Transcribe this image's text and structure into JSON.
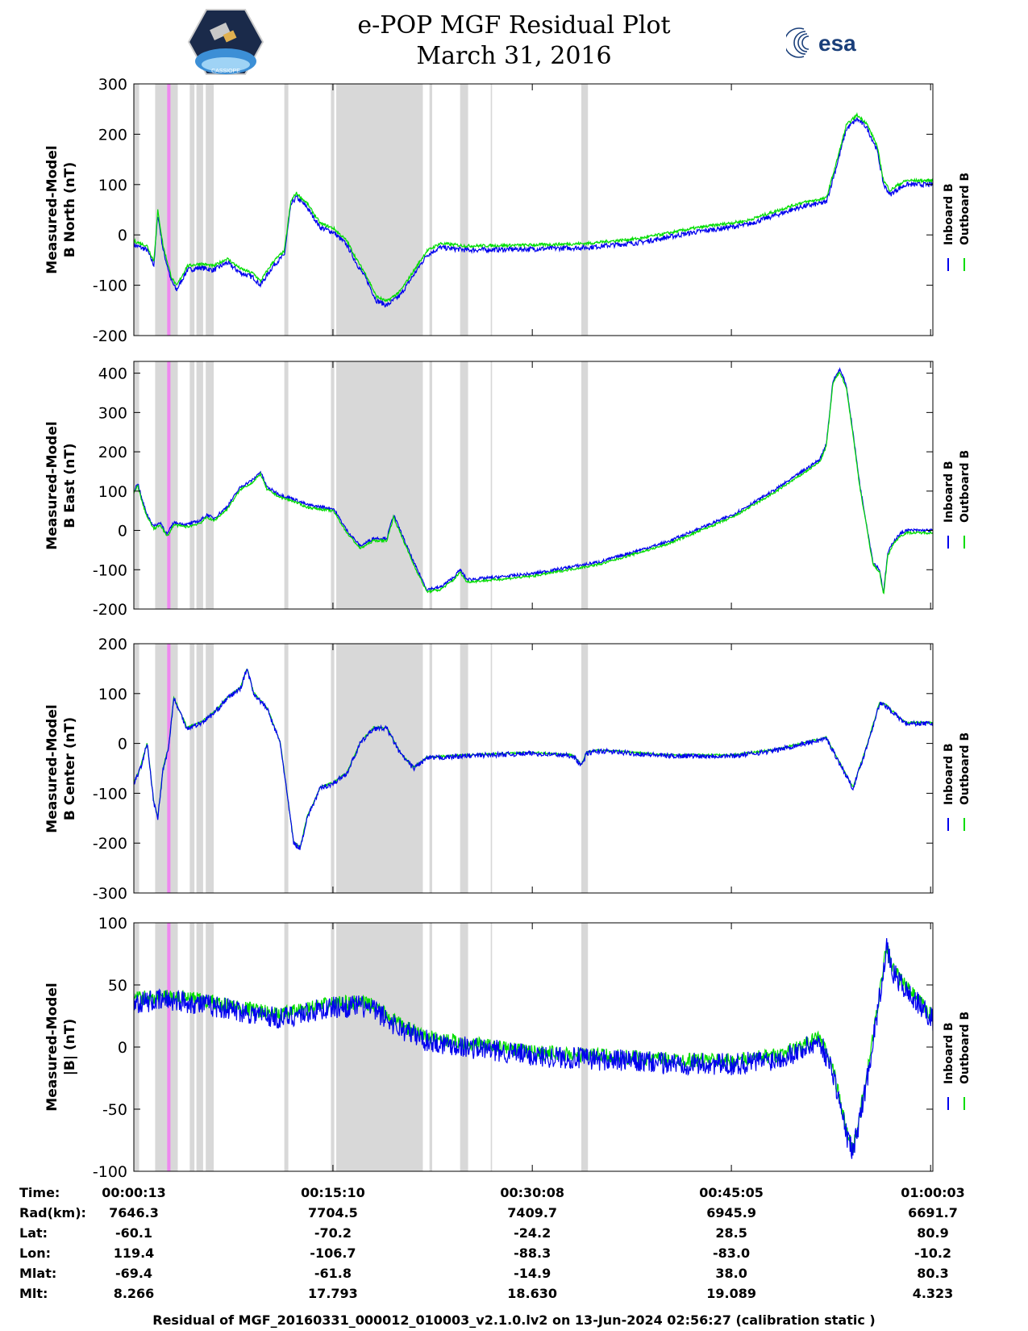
{
  "title": {
    "line1": "e-POP MGF Residual Plot",
    "line2": "March 31, 2016"
  },
  "logos": {
    "left_text": "CASSIOPE",
    "right_text": "esa"
  },
  "legend": {
    "inboard": "Inboard B",
    "outboard": "Outboard B",
    "inboard_color": "#0000ee",
    "outboard_color": "#00dd00"
  },
  "colors": {
    "gap_shade": "#d8d8d8",
    "pink_marker": "#ee88ee"
  },
  "x_ticks": [
    "00:00:13",
    "00:15:10",
    "00:30:08",
    "00:45:05",
    "01:00:03"
  ],
  "shaded_intervals_min": [
    [
      0.0,
      0.4
    ],
    [
      1.6,
      2.5
    ],
    [
      2.5,
      3.3
    ],
    [
      4.2,
      4.55
    ],
    [
      4.7,
      5.2
    ],
    [
      5.4,
      6.0
    ],
    [
      11.3,
      11.6
    ],
    [
      14.8,
      15.05
    ],
    [
      15.2,
      21.7
    ],
    [
      22.2,
      22.4
    ],
    [
      24.5,
      25.1
    ],
    [
      26.8,
      26.9
    ],
    [
      33.6,
      34.1
    ]
  ],
  "pink_intervals_min": [
    [
      2.5,
      2.75
    ]
  ],
  "chart_data": [
    {
      "type": "line",
      "ylabel_line1": "Measured-Model",
      "ylabel_line2": "B North (nT)",
      "ylim": [
        -200,
        300
      ],
      "yticks": [
        -200,
        -100,
        0,
        100,
        200,
        300
      ],
      "x_unit": "minutes after 00:00:13",
      "xlim": [
        0,
        60
      ],
      "series": [
        {
          "name": "Inboard B",
          "color": "#0000ee",
          "noise": 5,
          "x": [
            0,
            1.0,
            1.5,
            1.8,
            2.2,
            2.8,
            3.2,
            4.0,
            5.0,
            6.0,
            7.0,
            8.0,
            9.0,
            9.5,
            10.5,
            11.3,
            11.8,
            12.2,
            13.0,
            14.0,
            15.0,
            16.0,
            16.8,
            17.5,
            18.2,
            19.0,
            20.0,
            21.0,
            22.0,
            23.0,
            25.0,
            30.0,
            34.0,
            38.0,
            42.0,
            46.0,
            50.0,
            52.0,
            52.8,
            53.5,
            54.3,
            55.0,
            55.8,
            56.3,
            56.8,
            57.3,
            58.0,
            60.0
          ],
          "y": [
            -20,
            -30,
            -60,
            40,
            -30,
            -90,
            -110,
            -70,
            -65,
            -70,
            -55,
            -75,
            -85,
            -100,
            -60,
            -40,
            60,
            75,
            55,
            15,
            5,
            -20,
            -60,
            -90,
            -130,
            -140,
            -120,
            -80,
            -40,
            -25,
            -30,
            -28,
            -25,
            -15,
            5,
            20,
            55,
            65,
            140,
            210,
            230,
            215,
            170,
            100,
            80,
            90,
            100,
            100
          ]
        },
        {
          "name": "Outboard B",
          "color": "#00dd00",
          "noise": 3,
          "offset": 8,
          "x": [
            0,
            1.0,
            1.5,
            1.8,
            2.2,
            2.8,
            3.2,
            4.0,
            5.0,
            6.0,
            7.0,
            8.0,
            9.0,
            9.5,
            10.5,
            11.3,
            11.8,
            12.2,
            13.0,
            14.0,
            15.0,
            16.0,
            16.8,
            17.5,
            18.2,
            19.0,
            20.0,
            21.0,
            22.0,
            23.0,
            25.0,
            30.0,
            34.0,
            38.0,
            42.0,
            46.0,
            50.0,
            52.0,
            52.8,
            53.5,
            54.3,
            55.0,
            55.8,
            56.3,
            56.8,
            57.3,
            58.0,
            60.0
          ],
          "y": [
            -20,
            -30,
            -60,
            40,
            -30,
            -90,
            -110,
            -70,
            -65,
            -70,
            -55,
            -75,
            -85,
            -100,
            -60,
            -40,
            60,
            75,
            55,
            15,
            5,
            -20,
            -60,
            -90,
            -130,
            -140,
            -120,
            -80,
            -40,
            -25,
            -30,
            -28,
            -25,
            -15,
            5,
            20,
            55,
            65,
            140,
            210,
            230,
            215,
            170,
            100,
            80,
            90,
            100,
            100
          ]
        }
      ]
    },
    {
      "type": "line",
      "ylabel_line1": "Measured-Model",
      "ylabel_line2": "B East (nT)",
      "ylim": [
        -200,
        430
      ],
      "yticks": [
        -200,
        -100,
        0,
        100,
        200,
        300,
        400
      ],
      "x_unit": "minutes after 00:00:13",
      "xlim": [
        0,
        60
      ],
      "series": [
        {
          "name": "Inboard B",
          "color": "#0000ee",
          "noise": 4,
          "x": [
            0,
            0.3,
            0.6,
            1.0,
            1.5,
            2.0,
            2.5,
            3.0,
            4.0,
            5.0,
            5.5,
            6.0,
            7.0,
            8.0,
            9.0,
            9.5,
            10.0,
            11.0,
            12.0,
            13.0,
            14.0,
            15.0,
            16.0,
            17.0,
            18.0,
            19.0,
            19.5,
            20.0,
            21.0,
            22.0,
            23.0,
            24.0,
            24.5,
            25.0,
            27.0,
            30.0,
            35.0,
            40.0,
            45.0,
            48.0,
            50.0,
            51.5,
            52.0,
            52.5,
            53.0,
            53.5,
            54.0,
            54.5,
            55.0,
            55.5,
            56.0,
            56.3,
            56.6,
            57.0,
            57.5,
            58.0,
            60.0
          ],
          "y": [
            100,
            120,
            80,
            40,
            10,
            20,
            -10,
            20,
            15,
            25,
            40,
            30,
            60,
            110,
            130,
            150,
            110,
            90,
            80,
            65,
            60,
            55,
            0,
            -40,
            -20,
            -20,
            40,
            0,
            -80,
            -150,
            -145,
            -120,
            -100,
            -125,
            -120,
            -110,
            -80,
            -30,
            40,
            100,
            145,
            180,
            220,
            380,
            410,
            370,
            250,
            120,
            20,
            -80,
            -100,
            -160,
            -60,
            -30,
            -10,
            0,
            0
          ]
        },
        {
          "name": "Outboard B",
          "color": "#00dd00",
          "noise": 3,
          "offset": -6,
          "x": [
            0,
            0.3,
            0.6,
            1.0,
            1.5,
            2.0,
            2.5,
            3.0,
            4.0,
            5.0,
            5.5,
            6.0,
            7.0,
            8.0,
            9.0,
            9.5,
            10.0,
            11.0,
            12.0,
            13.0,
            14.0,
            15.0,
            16.0,
            17.0,
            18.0,
            19.0,
            19.5,
            20.0,
            21.0,
            22.0,
            23.0,
            24.0,
            24.5,
            25.0,
            27.0,
            30.0,
            35.0,
            40.0,
            45.0,
            48.0,
            50.0,
            51.5,
            52.0,
            52.5,
            53.0,
            53.5,
            54.0,
            54.5,
            55.0,
            55.5,
            56.0,
            56.3,
            56.6,
            57.0,
            57.5,
            58.0,
            60.0
          ],
          "y": [
            100,
            120,
            80,
            40,
            10,
            20,
            -10,
            20,
            15,
            25,
            40,
            30,
            60,
            110,
            130,
            150,
            110,
            90,
            80,
            65,
            60,
            55,
            0,
            -40,
            -20,
            -20,
            40,
            0,
            -80,
            -150,
            -145,
            -120,
            -100,
            -125,
            -120,
            -110,
            -80,
            -30,
            40,
            100,
            145,
            180,
            220,
            380,
            410,
            370,
            250,
            120,
            20,
            -80,
            -100,
            -160,
            -60,
            -30,
            -10,
            0,
            0
          ]
        }
      ]
    },
    {
      "type": "line",
      "ylabel_line1": "Measured-Model",
      "ylabel_line2": "B Center (nT)",
      "ylim": [
        -300,
        200
      ],
      "yticks": [
        -300,
        -200,
        -100,
        0,
        100,
        200
      ],
      "x_unit": "minutes after 00:00:13",
      "xlim": [
        0,
        60
      ],
      "series": [
        {
          "name": "Outboard B",
          "color": "#00dd00",
          "noise": 2,
          "offset": 2,
          "x": [
            0,
            0.5,
            1.0,
            1.5,
            1.8,
            2.2,
            2.6,
            3.0,
            3.5,
            4.0,
            5.0,
            6.0,
            7.0,
            8.0,
            8.5,
            9.0,
            10.0,
            11.0,
            11.5,
            12.0,
            12.5,
            13.0,
            14.0,
            15.0,
            16.0,
            17.0,
            18.0,
            19.0,
            20.0,
            21.0,
            22.0,
            25.0,
            30.0,
            33.0,
            33.6,
            34.0,
            35.0,
            40.0,
            45.0,
            48.0,
            52.0,
            53.0,
            54.0,
            55.0,
            56.0,
            56.5,
            57.5,
            58.0,
            60.0
          ],
          "y": [
            -80,
            -50,
            0,
            -120,
            -150,
            -50,
            -10,
            90,
            60,
            30,
            40,
            60,
            90,
            110,
            150,
            100,
            70,
            0,
            -100,
            -200,
            -210,
            -150,
            -90,
            -80,
            -60,
            0,
            30,
            30,
            -20,
            -50,
            -30,
            -25,
            -20,
            -25,
            -45,
            -20,
            -15,
            -25,
            -25,
            -15,
            10,
            -40,
            -90,
            -10,
            80,
            75,
            50,
            40,
            40
          ]
        },
        {
          "name": "Inboard B",
          "color": "#0000ee",
          "noise": 5,
          "x": [
            0,
            0.5,
            1.0,
            1.5,
            1.8,
            2.2,
            2.6,
            3.0,
            3.5,
            4.0,
            5.0,
            6.0,
            7.0,
            8.0,
            8.5,
            9.0,
            10.0,
            11.0,
            11.5,
            12.0,
            12.5,
            13.0,
            14.0,
            15.0,
            16.0,
            17.0,
            18.0,
            19.0,
            20.0,
            21.0,
            22.0,
            25.0,
            30.0,
            33.0,
            33.6,
            34.0,
            35.0,
            40.0,
            45.0,
            48.0,
            52.0,
            53.0,
            54.0,
            55.0,
            56.0,
            56.5,
            57.5,
            58.0,
            60.0
          ],
          "y": [
            -80,
            -50,
            0,
            -120,
            -150,
            -50,
            -10,
            90,
            60,
            30,
            40,
            60,
            90,
            110,
            150,
            100,
            70,
            0,
            -100,
            -200,
            -210,
            -150,
            -90,
            -80,
            -60,
            0,
            30,
            30,
            -20,
            -50,
            -30,
            -25,
            -20,
            -25,
            -45,
            -20,
            -15,
            -25,
            -25,
            -15,
            10,
            -40,
            -90,
            -10,
            80,
            75,
            50,
            40,
            40
          ]
        }
      ]
    },
    {
      "type": "line",
      "ylabel_line1": "Measured-Model",
      "ylabel_line2": "|B| (nT)",
      "ylim": [
        -100,
        100
      ],
      "yticks": [
        -100,
        -50,
        0,
        50,
        100
      ],
      "x_unit": "minutes after 00:00:13",
      "xlim": [
        0,
        60
      ],
      "series": [
        {
          "name": "Outboard B",
          "color": "#00dd00",
          "noise": 6,
          "offset": 3,
          "x": [
            0,
            3.0,
            6.0,
            9.0,
            11.0,
            13.0,
            15.0,
            17.0,
            18.0,
            20.0,
            22.0,
            25.0,
            30.0,
            35.0,
            40.0,
            45.0,
            48.0,
            50.0,
            51.5,
            52.5,
            53.5,
            54.0,
            55.0,
            56.0,
            56.5,
            57.0,
            58.0,
            60.0
          ],
          "y": [
            36,
            38,
            33,
            27,
            23,
            28,
            32,
            33,
            30,
            15,
            5,
            0,
            -7,
            -10,
            -13,
            -14,
            -10,
            -3,
            5,
            -20,
            -70,
            -85,
            -30,
            40,
            80,
            60,
            45,
            22
          ]
        },
        {
          "name": "Inboard B",
          "color": "#0000ee",
          "noise": 9,
          "x": [
            0,
            3.0,
            6.0,
            9.0,
            11.0,
            13.0,
            15.0,
            17.0,
            18.0,
            20.0,
            22.0,
            25.0,
            30.0,
            35.0,
            40.0,
            45.0,
            48.0,
            50.0,
            51.5,
            52.5,
            53.5,
            54.0,
            55.0,
            56.0,
            56.5,
            57.0,
            58.0,
            60.0
          ],
          "y": [
            36,
            38,
            33,
            27,
            23,
            28,
            32,
            33,
            30,
            15,
            5,
            0,
            -7,
            -10,
            -13,
            -14,
            -10,
            -3,
            5,
            -20,
            -70,
            -85,
            -30,
            40,
            80,
            60,
            45,
            22
          ]
        }
      ]
    }
  ],
  "footer": {
    "row_labels": [
      "Time:",
      "Rad(km):",
      "Lat:",
      "Lon:",
      "Mlat:",
      "Mlt:"
    ],
    "columns": [
      [
        "00:00:13",
        "7646.3",
        "-60.1",
        "119.4",
        "-69.4",
        "8.266"
      ],
      [
        "00:15:10",
        "7704.5",
        "-70.2",
        "-106.7",
        "-61.8",
        "17.793"
      ],
      [
        "00:30:08",
        "7409.7",
        "-24.2",
        "-88.3",
        "-14.9",
        "18.630"
      ],
      [
        "00:45:05",
        "6945.9",
        "28.5",
        "-83.0",
        "38.0",
        "19.089"
      ],
      [
        "01:00:03",
        "6691.7",
        "80.9",
        "-10.2",
        "80.3",
        "4.323"
      ]
    ],
    "note": "Residual of MGF_20160331_000012_010003_v2.1.0.lv2 on 13-Jun-2024 02:56:27 (calibration static )"
  }
}
